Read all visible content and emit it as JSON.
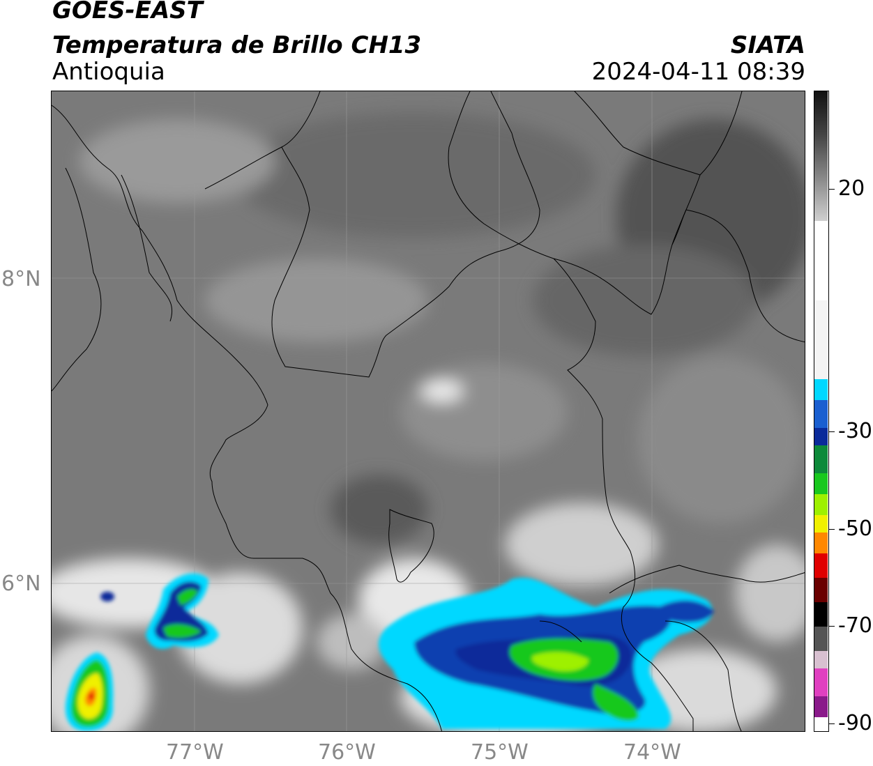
{
  "header": {
    "satellite": "GOES-EAST",
    "product": "Temperatura de Brillo CH13",
    "region": "Antioquia",
    "org": "SIATA",
    "datetime": "2024-04-11 08:39"
  },
  "axes": {
    "lat_labels": [
      "8°N",
      "6°N"
    ],
    "lon_labels": [
      "77°W",
      "76°W",
      "75°W",
      "74°W"
    ]
  },
  "colorbar": {
    "ticks": [
      "20",
      "-30",
      "-50",
      "-70",
      "-90"
    ],
    "colors": {
      "gray_warm": "#1a1a1a",
      "gray_cold": "#f2f2f2",
      "cyan": "#00d8ff",
      "blue": "#0a2a9a",
      "green": "#19c81e",
      "yellow": "#f0f000",
      "orange": "#ff8800",
      "red": "#e00000",
      "black": "#000000",
      "magenta": "#e040c0",
      "purple": "#8a1a8a"
    }
  }
}
